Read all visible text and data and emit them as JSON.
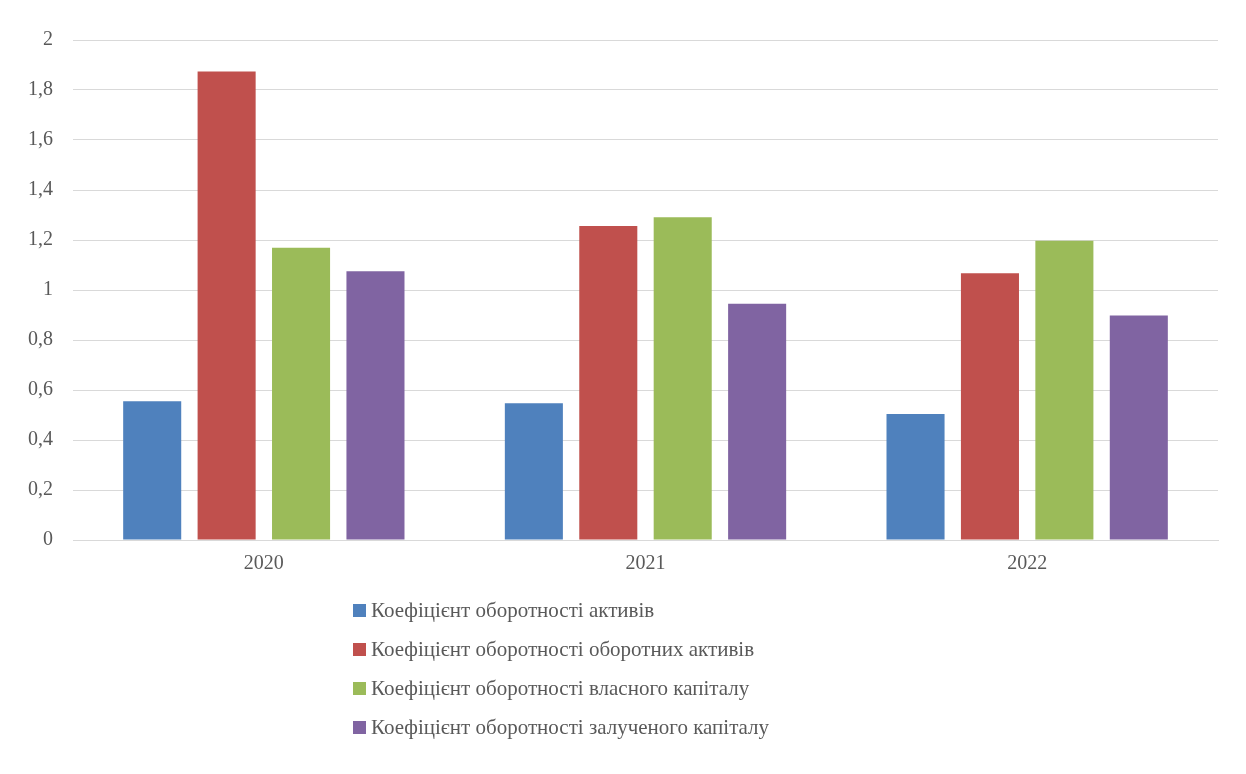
{
  "chart_data": {
    "type": "bar",
    "categories": [
      "2020",
      "2021",
      "2022"
    ],
    "series": [
      {
        "name": "Коефіцієнт оборотності активів",
        "color": "#4f81bd",
        "values": [
          0.555,
          0.547,
          0.504
        ]
      },
      {
        "name": "Коефіцієнт оборотності оборотних активів",
        "color": "#c0504d",
        "values": [
          1.874,
          1.256,
          1.067
        ]
      },
      {
        "name": "Коефіцієнт оборотності власного капіталу",
        "color": "#9bbb59",
        "values": [
          1.169,
          1.291,
          1.197
        ]
      },
      {
        "name": "Коефіцієнт оборотності залученого капіталу",
        "color": "#8064a2",
        "values": [
          1.075,
          0.945,
          0.898
        ]
      }
    ],
    "ylim": [
      0,
      2
    ],
    "yticks": [
      0,
      {
        "value": 0.2,
        "label": "0,2"
      },
      {
        "value": 0.4,
        "label": "0,4"
      },
      {
        "value": 0.6,
        "label": "0,6"
      },
      {
        "value": 0.8,
        "label": "0,8"
      },
      1,
      {
        "value": 1.2,
        "label": "1,2"
      },
      {
        "value": 1.4,
        "label": "1,4"
      },
      {
        "value": 1.6,
        "label": "1,6"
      },
      {
        "value": 1.8,
        "label": "1,8"
      },
      2
    ],
    "grid": "y",
    "legend": "bottom"
  }
}
